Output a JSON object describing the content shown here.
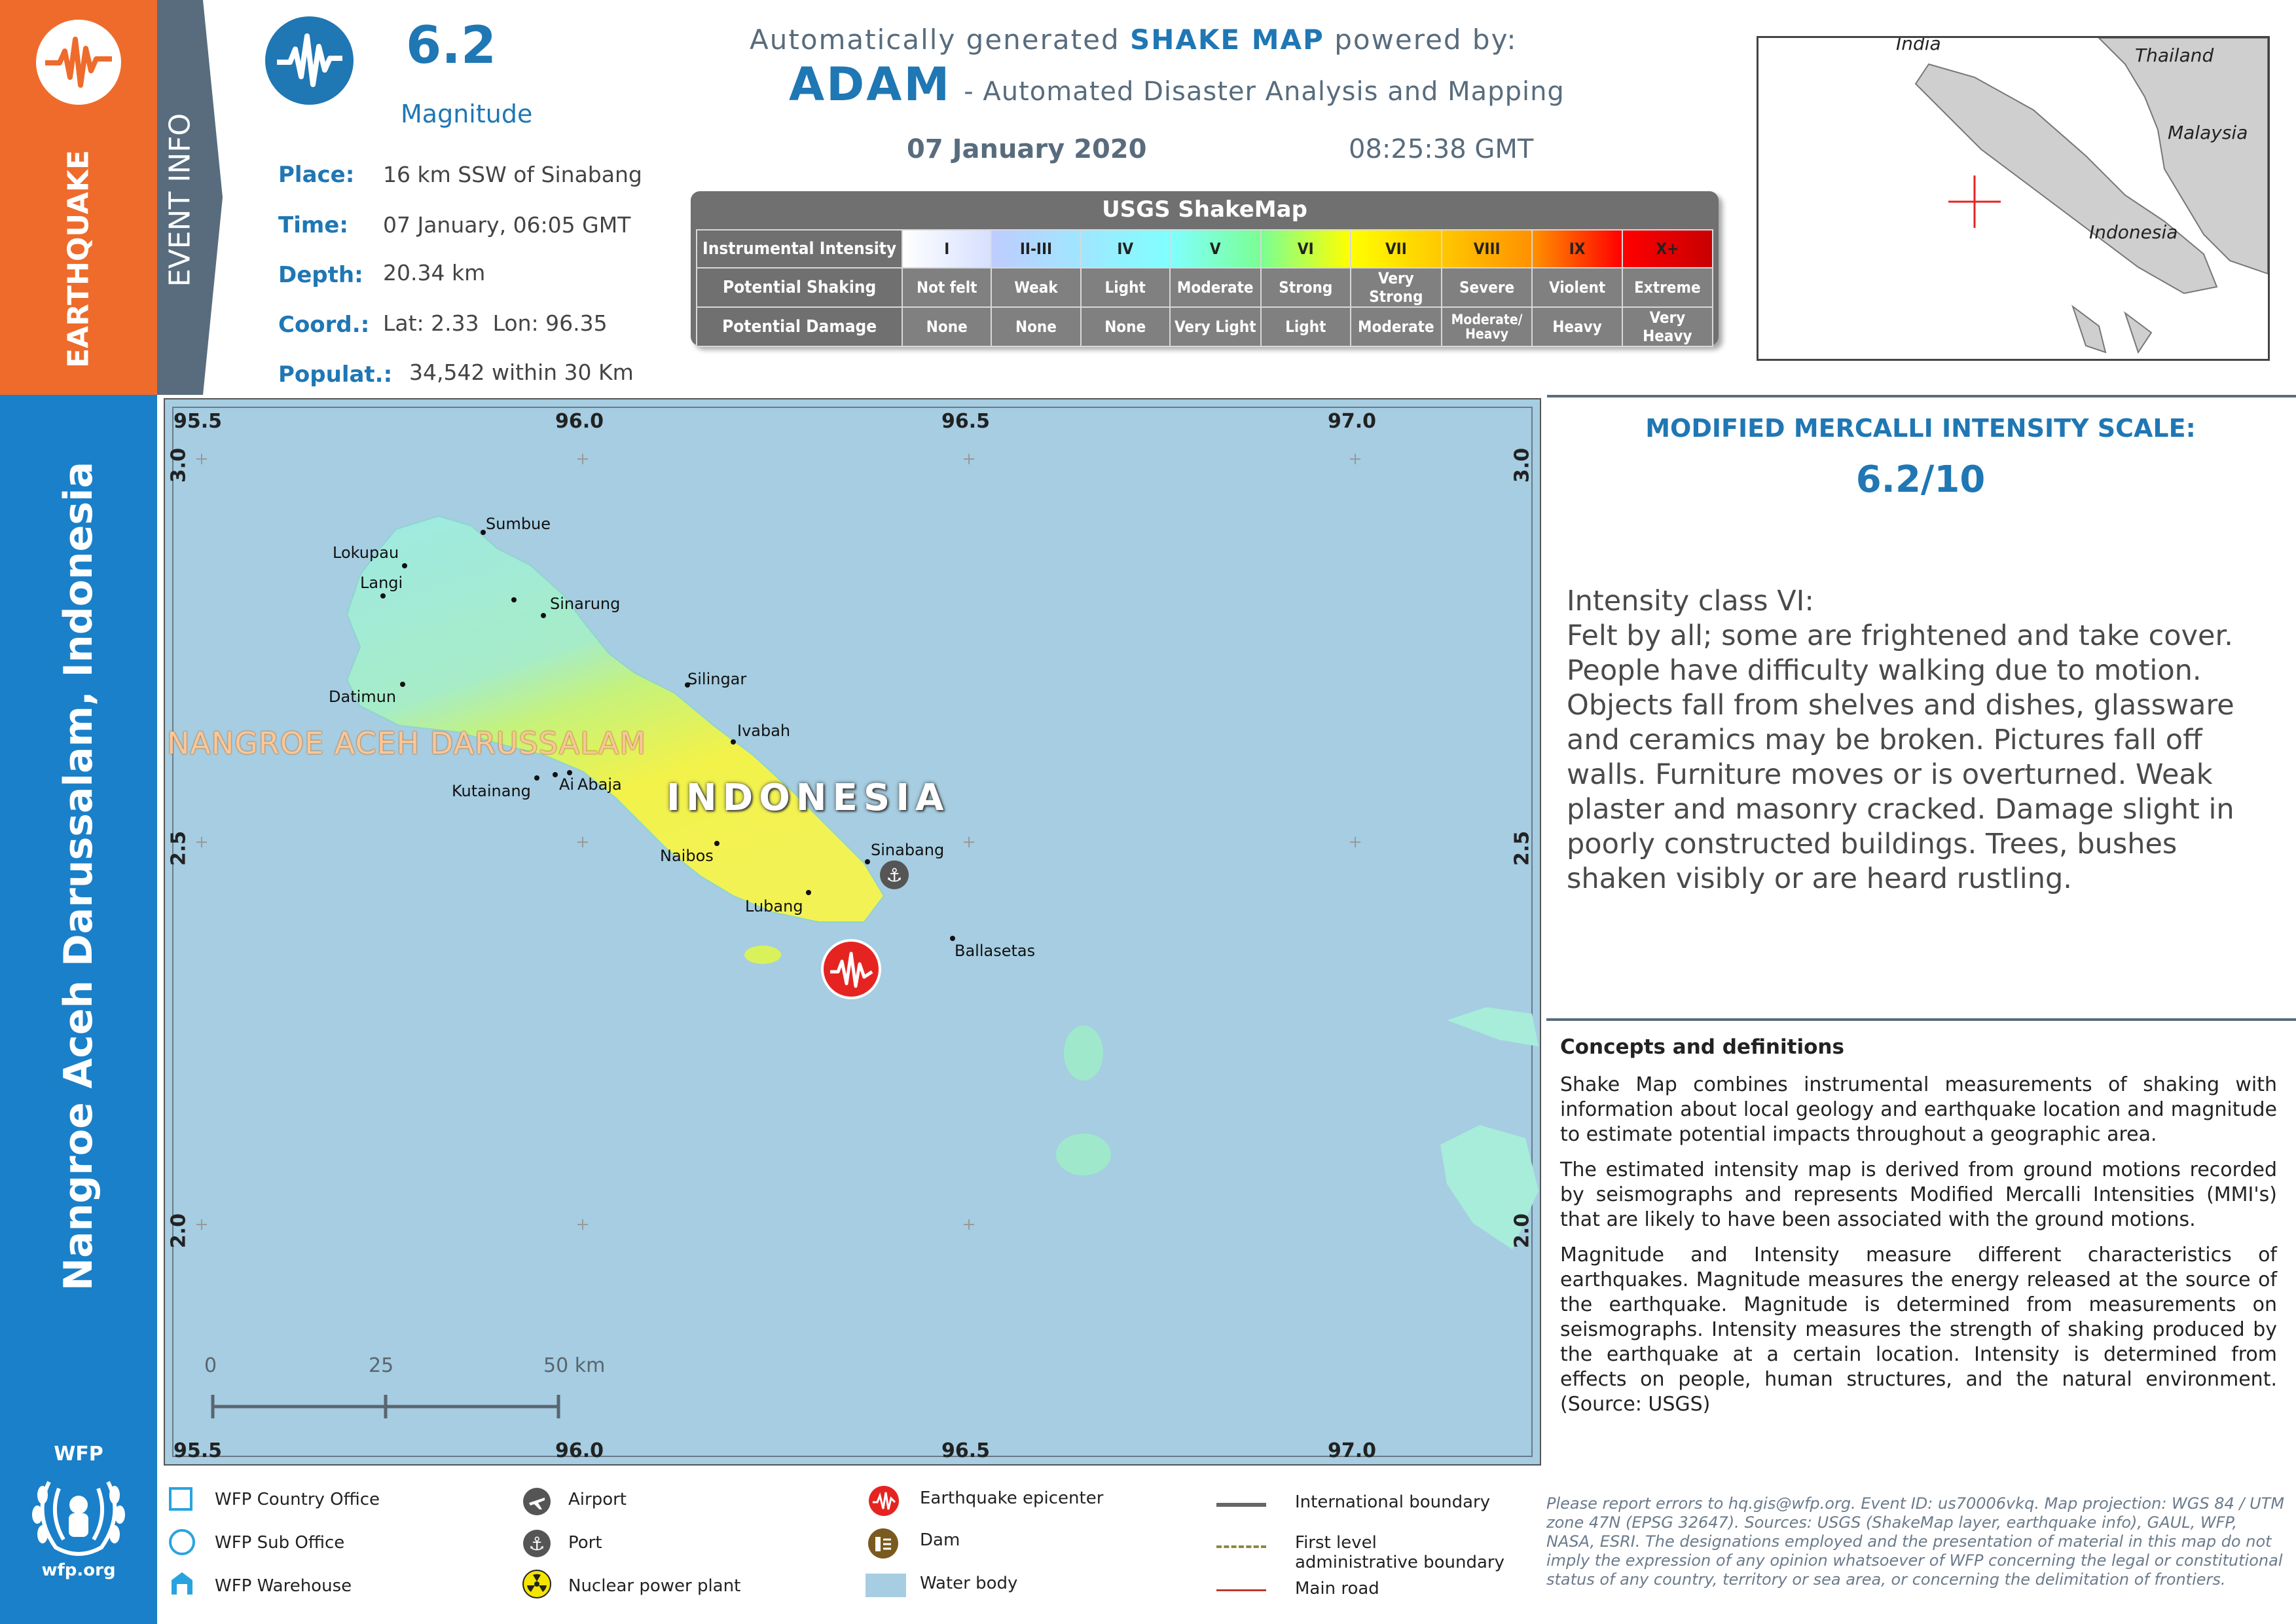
{
  "sidebar": {
    "hazard_label": "EARTHQUAKE",
    "event_info_label": "EVENT INFO",
    "region_title": "Nangroe Aceh Darussalam, Indonesia",
    "wfp_label": "WFP",
    "wfp_url": "wfp.org"
  },
  "event": {
    "magnitude": "6.2",
    "magnitude_label": "Magnitude",
    "place_label": "Place:",
    "place": "16 km SSW of Sinabang",
    "time_label": "Time:",
    "time": "07 January, 06:05 GMT",
    "depth_label": "Depth:",
    "depth": "20.34 km",
    "coord_label": "Coord.:",
    "coord": "Lat: 2.33  Lon: 96.35",
    "popul_label": "Populat.:",
    "popul": "34,542 within 30 Km"
  },
  "header": {
    "line1_prefix": "Automatically generated",
    "line1_bold": "SHAKE MAP",
    "line1_suffix": "powered by:",
    "adam": "ADAM",
    "adam_desc": "- Automated Disaster Analysis and Mapping",
    "date": "07 January 2020",
    "time": "08:25:38 GMT"
  },
  "shakemap_table": {
    "title": "USGS ShakeMap",
    "rows": [
      {
        "label": "Instrumental Intensity",
        "cells": [
          "I",
          "II-III",
          "IV",
          "V",
          "VI",
          "VII",
          "VIII",
          "IX",
          "X+"
        ]
      },
      {
        "label": "Potential Shaking",
        "cells": [
          "Not felt",
          "Weak",
          "Light",
          "Moderate",
          "Strong",
          "Very Strong",
          "Severe",
          "Violent",
          "Extreme"
        ]
      },
      {
        "label": "Potential Damage",
        "cells": [
          "None",
          "None",
          "None",
          "Very Light",
          "Light",
          "Moderate",
          "Moderate/ Heavy",
          "Heavy",
          "Very Heavy"
        ]
      }
    ],
    "colors": [
      "#ffffff",
      "#bfccff",
      "#a0e6ff",
      "#80ffff",
      "#7aff93",
      "#ffff00",
      "#ffc800",
      "#ff9100",
      "#ff0000",
      "#c80000"
    ]
  },
  "inset": {
    "labels": [
      "India",
      "Thailand",
      "Malaysia",
      "Indonesia"
    ]
  },
  "map": {
    "lon_ticks": [
      "95.5",
      "96.0",
      "96.5",
      "97.0"
    ],
    "lat_ticks": [
      "3.0",
      "2.5",
      "2.0"
    ],
    "province_label": "NANGROE ACEH DARUSSALAM",
    "country_label": "INDONESIA",
    "places": [
      "Sumbue",
      "Lokupau",
      "Langi",
      "Sinarung",
      "Datimun",
      "Silingar",
      "Ivabah",
      "Kutainang",
      "Ai",
      "Abaja",
      "Naibos",
      "Sinabang",
      "Lubang",
      "Ballasetas"
    ],
    "scale": [
      "0",
      "25",
      "50 km"
    ],
    "colors": {
      "water": "#a6cde1",
      "land_north": "#9ee9e4",
      "land_south": "#f2f24a",
      "epicenter": "#e52421"
    }
  },
  "mmi": {
    "title": "MODIFIED MERCALLI INTENSITY SCALE:",
    "value": "6.2/10",
    "class": "Intensity class VI:",
    "description": "Felt by all; some are frightened and take cover. People have difficulty walking due to motion. Objects fall from shelves and dishes, glassware and ceramics may be broken. Pictures fall off walls. Furniture moves or is overturned. Weak plaster and masonry cracked. Damage slight in poorly constructed buildings. Trees, bushes shaken visibly or are heard rustling."
  },
  "concepts": {
    "title": "Concepts and definitions",
    "p1": "Shake Map combines instrumental measurements of shaking with information about local geology and earthquake location and magnitude to estimate potential impacts throughout a geographic area.",
    "p2": "The estimated intensity map is derived from ground motions recorded by seismographs and represents Modified Mercalli Intensities (MMI's) that are likely to have been associated with the ground motions.",
    "p3": "Magnitude and Intensity measure different characteristics of earthquakes. Magnitude measures the energy released at the source of the earthquake. Magnitude is determined from measurements on seismographs. Intensity measures the strength of shaking produced by the earthquake at a certain location. Intensity is determined from effects on people, human structures, and the natural environment. (Source: USGS)"
  },
  "legend": {
    "country_office": "WFP Country Office",
    "sub_office": "WFP Sub Office",
    "warehouse": "WFP Warehouse",
    "airport": "Airport",
    "port": "Port",
    "nuclear": "Nuclear power plant",
    "epicenter": "Earthquake epicenter",
    "dam": "Dam",
    "water": "Water body",
    "intl_boundary": "International boundary",
    "admin_boundary": "First level administrative boundary",
    "main_road": "Main road"
  },
  "footer_note": "Please report errors to hq.gis@wfp.org. Event ID: us70006vkq. Map projection: WGS 84 / UTM zone 47N (EPSG 32647). Sources: USGS (ShakeMap layer, earthquake info), GAUL, WFP, NASA, ESRI. The designations employed and the presentation of material in this map do not imply the expression of any opinion whatsoever of WFP concerning the legal or constitutional status of any country, territory or sea area, or concerning the delimitation of frontiers."
}
